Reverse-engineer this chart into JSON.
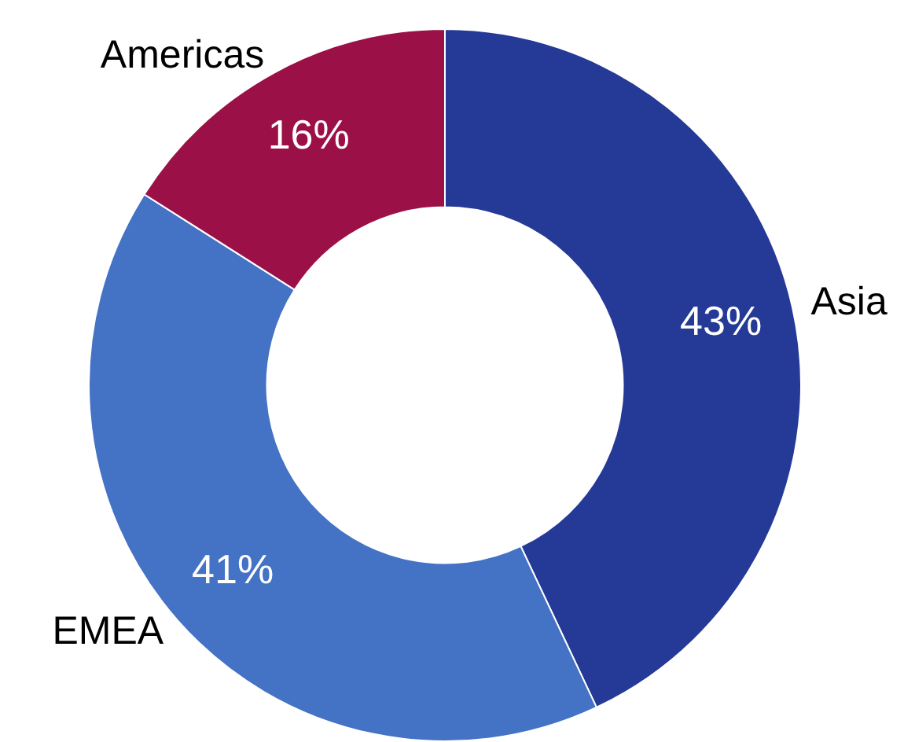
{
  "chart_data": {
    "type": "donut",
    "categories": [
      "Asia",
      "EMEA",
      "Americas"
    ],
    "values": [
      43,
      41,
      16
    ],
    "value_labels": [
      "43%",
      "41%",
      "16%"
    ],
    "colors": [
      "#253a96",
      "#4472c4",
      "#9b1046"
    ],
    "legend": false
  }
}
